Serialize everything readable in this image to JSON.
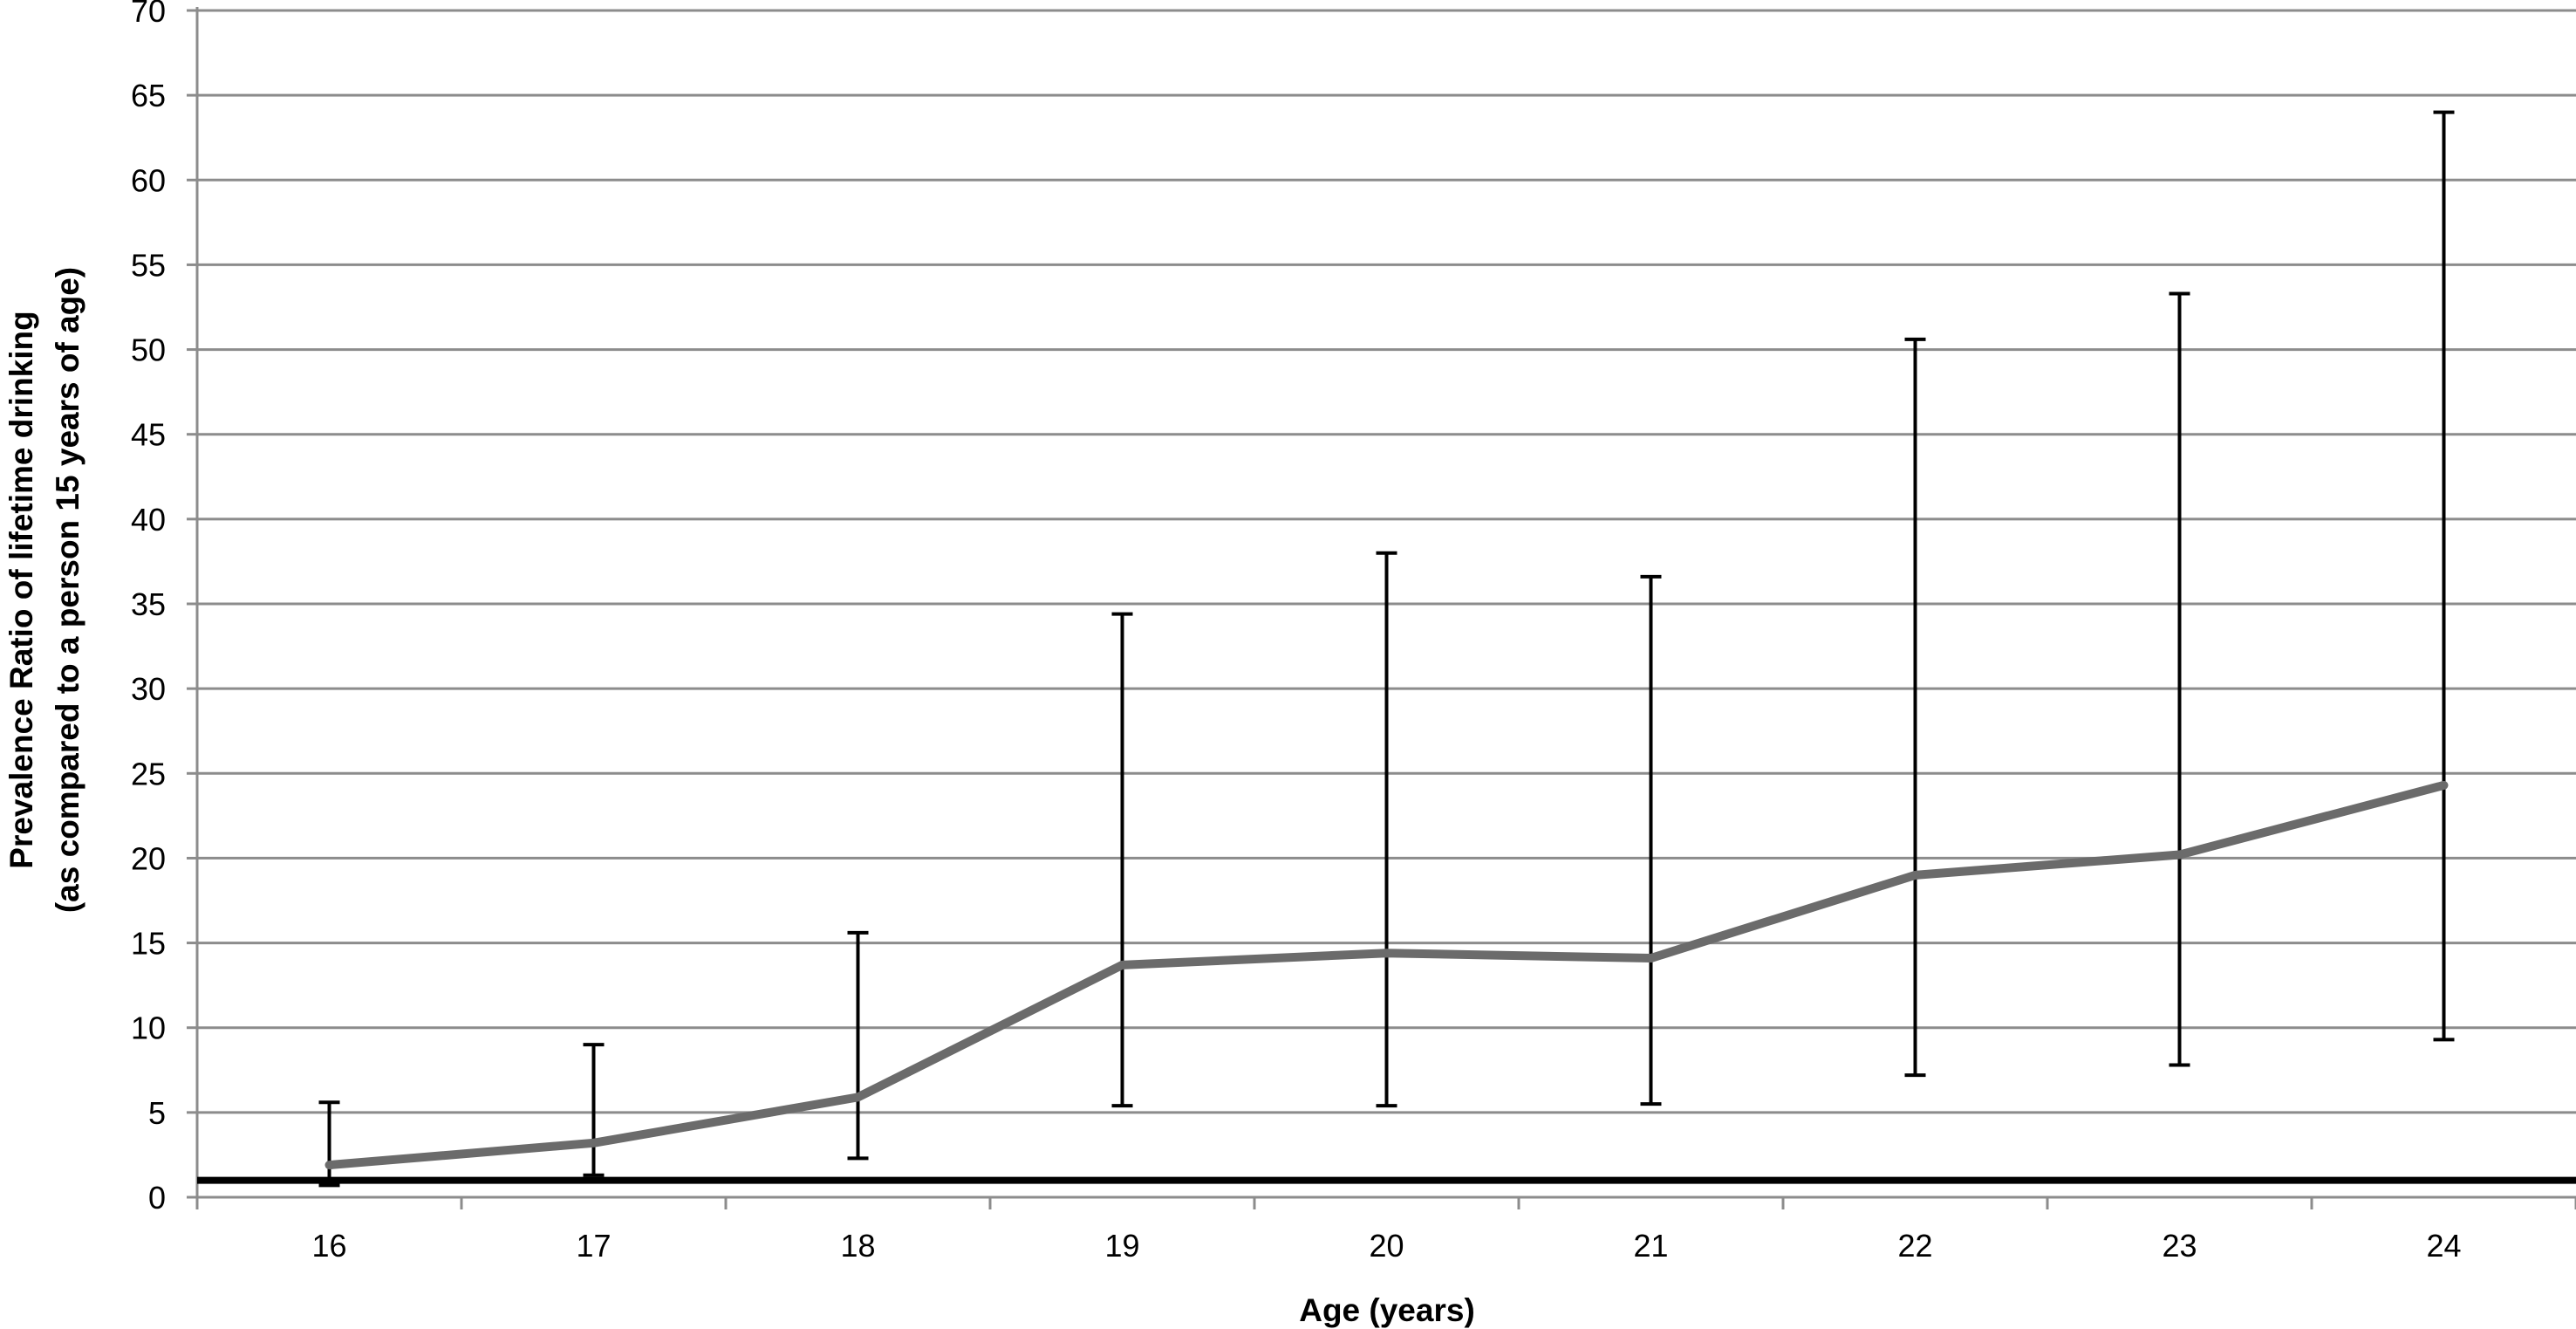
{
  "chart_data": {
    "type": "line",
    "title": "",
    "xlabel": "Age (years)",
    "ylabel_lines": [
      "Prevalence Ratio of lifetime drinking",
      "(as compared to a person 15 years of age)"
    ],
    "categories": [
      "16",
      "17",
      "18",
      "19",
      "20",
      "21",
      "22",
      "23",
      "24"
    ],
    "series": [
      {
        "values": [
          1.9,
          3.2,
          5.9,
          13.7,
          14.4,
          14.1,
          19.0,
          20.2,
          24.3
        ],
        "error_low": [
          0.7,
          1.3,
          2.3,
          5.4,
          5.4,
          5.5,
          7.2,
          7.8,
          9.3
        ],
        "error_high": [
          5.6,
          9.0,
          15.6,
          34.4,
          38.0,
          36.6,
          50.6,
          53.3,
          64.0
        ]
      }
    ],
    "reference_line": 1,
    "ylim": [
      0,
      70
    ],
    "yticks": [
      0,
      5,
      10,
      15,
      20,
      25,
      30,
      35,
      40,
      45,
      50,
      55,
      60,
      65,
      70
    ],
    "grid": true,
    "colors": {
      "line": "#6b6b6b",
      "error_bars": "#000000",
      "gridlines": "#8c8c8c",
      "reference_line": "#000000"
    }
  }
}
